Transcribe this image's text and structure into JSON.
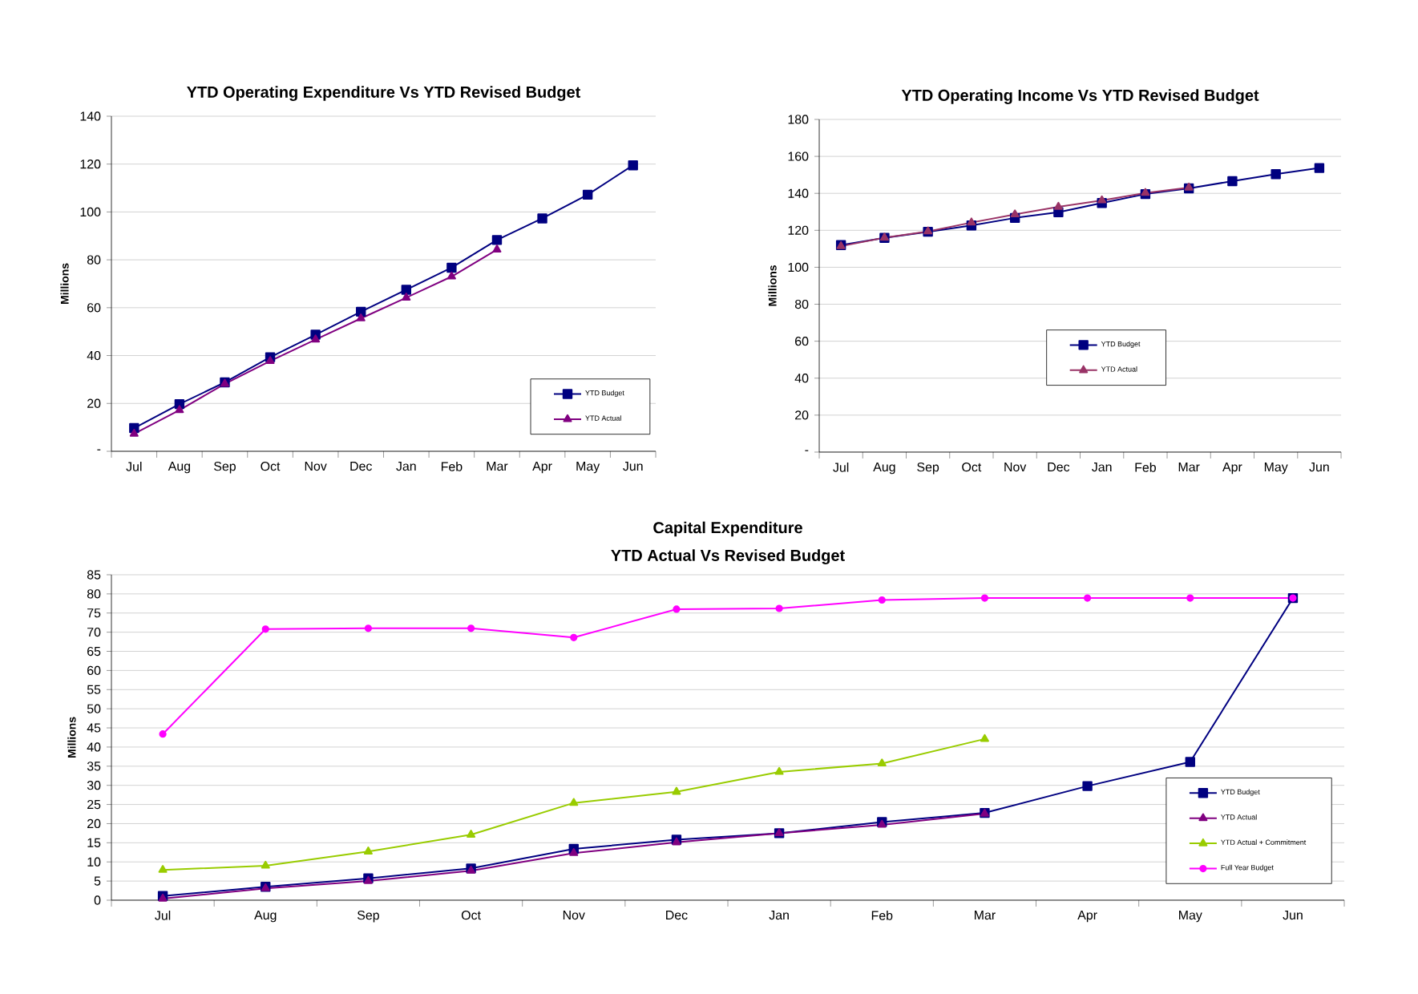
{
  "chart_data": [
    {
      "type": "line",
      "title": "YTD Operating Expenditure Vs YTD Revised Budget",
      "ylabel": "Millions",
      "categories": [
        "Jul",
        "Aug",
        "Sep",
        "Oct",
        "Nov",
        "Dec",
        "Jan",
        "Feb",
        "Mar",
        "Apr",
        "May",
        "Jun"
      ],
      "series": [
        {
          "name": "YTD Budget",
          "color": "#000080",
          "marker": "square",
          "values": [
            9.7,
            19.7,
            28.8,
            39.3,
            48.7,
            58.3,
            67.5,
            76.7,
            88.3,
            97.3,
            107.2,
            119.5
          ]
        },
        {
          "name": "YTD Actual",
          "color": "#800080",
          "marker": "triangle",
          "values": [
            7.3,
            17.2,
            28.2,
            37.7,
            46.7,
            55.5,
            64.2,
            73,
            84.3,
            null,
            null,
            null
          ]
        }
      ],
      "ylim": [
        0,
        140
      ],
      "yticks": [
        {
          "value": 0,
          "label": "-"
        },
        20,
        40,
        60,
        80,
        100,
        120,
        140
      ],
      "grid": "y",
      "legend": "bottom right",
      "line_style": "solid"
    },
    {
      "type": "line",
      "title": "YTD Operating Income Vs YTD Revised Budget",
      "ylabel": "Millions",
      "categories": [
        "Jul",
        "Aug",
        "Sep",
        "Oct",
        "Nov",
        "Dec",
        "Jan",
        "Feb",
        "Mar",
        "Apr",
        "May",
        "Jun"
      ],
      "series": [
        {
          "name": "YTD Budget",
          "color": "#000080",
          "marker": "square",
          "values": [
            112,
            115.9,
            119.2,
            122.6,
            126.7,
            129.8,
            134.8,
            139.6,
            142.7,
            146.6,
            150.4,
            153.7
          ]
        },
        {
          "name": "YTD Actual",
          "color": "#993366",
          "marker": "triangle",
          "values": [
            111.4,
            116,
            119.4,
            124.2,
            128.6,
            132.7,
            136.2,
            140.2,
            143.1,
            null,
            null,
            null
          ]
        }
      ],
      "ylim": [
        0,
        180
      ],
      "yticks": [
        {
          "value": 0,
          "label": "-"
        },
        20,
        40,
        60,
        80,
        100,
        120,
        140,
        160,
        180
      ],
      "grid": "y",
      "legend": "bottom",
      "line_style": "solid"
    },
    {
      "type": "line",
      "title": "Capital Expenditure",
      "subtitle": "YTD Actual Vs Revised Budget",
      "ylabel": "Millions",
      "categories": [
        "Jul",
        "Aug",
        "Sep",
        "Oct",
        "Nov",
        "Dec",
        "Jan",
        "Feb",
        "Mar",
        "Apr",
        "May",
        "Jun"
      ],
      "series": [
        {
          "name": "YTD Budget",
          "color": "#000080",
          "marker": "square",
          "values": [
            1.1,
            3.5,
            5.7,
            8.3,
            13.4,
            15.8,
            17.5,
            20.4,
            22.8,
            29.8,
            36.1,
            78.9
          ]
        },
        {
          "name": "YTD Actual",
          "color": "#800080",
          "marker": "triangle",
          "values": [
            0.4,
            3.1,
            5,
            7.7,
            12.3,
            15.1,
            17.5,
            19.7,
            22.6,
            null,
            null,
            null
          ]
        },
        {
          "name": "YTD Actual + Commitment",
          "color": "#99cc00",
          "marker": "triangle",
          "values": [
            7.9,
            9,
            12.7,
            17.1,
            25.4,
            28.3,
            33.5,
            35.7,
            42.1,
            null,
            null,
            null
          ]
        },
        {
          "name": "Full Year Budget",
          "color": "#ff00ff",
          "marker": "circle",
          "values": [
            43.4,
            70.8,
            71,
            71,
            68.6,
            76,
            76.2,
            78.4,
            78.9,
            78.9,
            78.9,
            78.9
          ]
        }
      ],
      "ylim": [
        0,
        85
      ],
      "yticks": [
        0,
        5,
        10,
        15,
        20,
        25,
        30,
        35,
        40,
        45,
        50,
        55,
        60,
        65,
        70,
        75,
        80,
        85
      ],
      "grid": "y",
      "legend": "bottom right",
      "line_style": "solid"
    }
  ]
}
